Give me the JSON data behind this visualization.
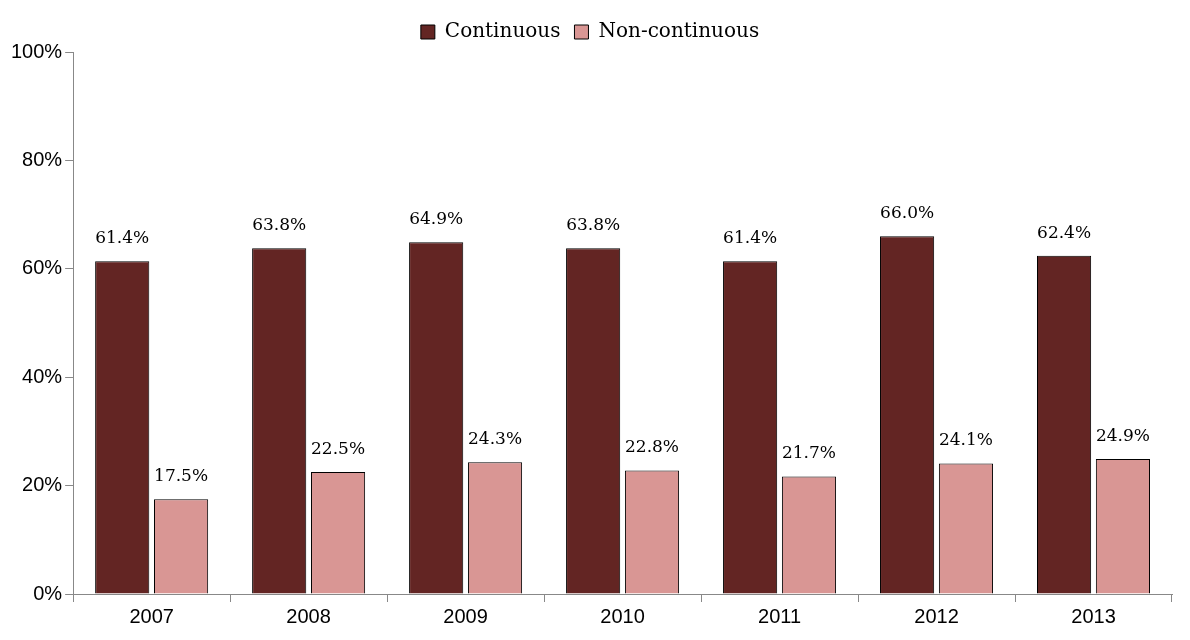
{
  "chart_data": {
    "type": "bar",
    "categories": [
      "2007",
      "2008",
      "2009",
      "2010",
      "2011",
      "2012",
      "2013"
    ],
    "series": [
      {
        "name": "Continuous",
        "color": "#632523",
        "values": [
          61.4,
          63.8,
          64.9,
          63.8,
          61.4,
          66.0,
          62.4
        ],
        "value_labels": [
          "61.4%",
          "63.8%",
          "64.9%",
          "63.8%",
          "61.4%",
          "66.0%",
          "62.4%"
        ]
      },
      {
        "name": "Non-continuous",
        "color": "#d99694",
        "values": [
          17.5,
          22.5,
          24.3,
          22.8,
          21.7,
          24.1,
          24.9
        ],
        "value_labels": [
          "17.5%",
          "22.5%",
          "24.3%",
          "22.8%",
          "21.7%",
          "24.1%",
          "24.9%"
        ]
      }
    ],
    "ylim": [
      0,
      100
    ],
    "yticks": [
      {
        "value": 0,
        "label": "0%"
      },
      {
        "value": 20,
        "label": "20%"
      },
      {
        "value": 40,
        "label": "40%"
      },
      {
        "value": 60,
        "label": "60%"
      },
      {
        "value": 80,
        "label": "80%"
      },
      {
        "value": 100,
        "label": "100%"
      }
    ],
    "grid": false,
    "legend": "top"
  }
}
